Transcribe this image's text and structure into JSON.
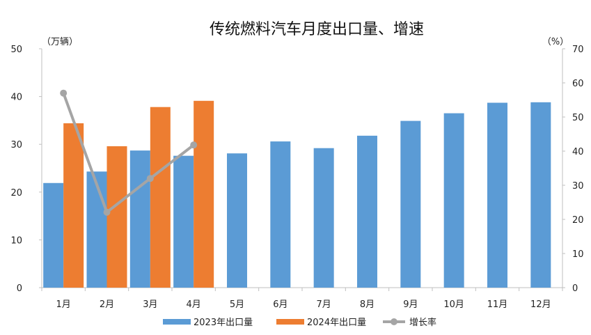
{
  "chart_data": {
    "type": "bar",
    "title": "传统燃料汽车月度出口量、增速",
    "y_left_unit": "（万辆）",
    "y_right_unit": "（%）",
    "categories": [
      "1月",
      "2月",
      "3月",
      "4月",
      "5月",
      "6月",
      "7月",
      "8月",
      "9月",
      "10月",
      "11月",
      "12月"
    ],
    "ylim_left": [
      0,
      50
    ],
    "ylim_right": [
      0,
      70
    ],
    "y_left_ticks": [
      "0",
      "10",
      "20",
      "30",
      "40",
      "50"
    ],
    "y_right_ticks": [
      "0",
      "10",
      "20",
      "30",
      "40",
      "50",
      "60",
      "70"
    ],
    "grid": false,
    "legend_position": "bottom",
    "series": [
      {
        "name": "2023年出口量",
        "type": "bar",
        "axis": "left",
        "color": "#5B9BD5",
        "values": [
          21.9,
          24.3,
          28.7,
          27.6,
          28.1,
          30.6,
          29.2,
          31.8,
          34.9,
          36.5,
          38.7,
          38.8
        ]
      },
      {
        "name": "2024年出口量",
        "type": "bar",
        "axis": "left",
        "color": "#ED7D31",
        "values": [
          34.4,
          29.6,
          37.8,
          39.1,
          null,
          null,
          null,
          null,
          null,
          null,
          null,
          null
        ]
      },
      {
        "name": "增长率",
        "type": "line",
        "axis": "right",
        "color": "#A5A5A5",
        "values": [
          57.0,
          22.1,
          32.0,
          41.8,
          null,
          null,
          null,
          null,
          null,
          null,
          null,
          null
        ]
      }
    ]
  }
}
